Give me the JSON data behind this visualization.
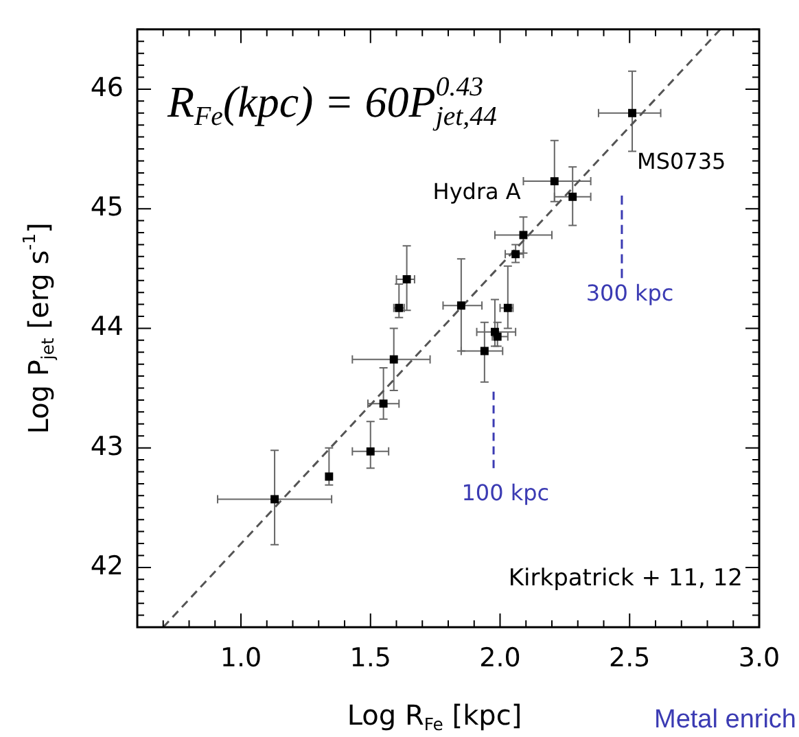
{
  "chart_data": {
    "type": "scatter",
    "xlabel": "Log R$_{Fe}$ [kpc]",
    "ylabel": "Log P$_{jet}$ [erg s$^{-1}$]",
    "xlim": [
      0.6,
      3.0
    ],
    "ylim": [
      41.5,
      46.5
    ],
    "xticks": [
      {
        "value": 0.6,
        "label": null
      },
      {
        "value": 0.7,
        "label": null
      },
      {
        "value": 0.8,
        "label": null
      },
      {
        "value": 0.9,
        "label": null
      },
      {
        "value": 1.0,
        "label": "1.0"
      },
      {
        "value": 1.1,
        "label": null
      },
      {
        "value": 1.2,
        "label": null
      },
      {
        "value": 1.3,
        "label": null
      },
      {
        "value": 1.4,
        "label": null
      },
      {
        "value": 1.5,
        "label": "1.5"
      },
      {
        "value": 1.6,
        "label": null
      },
      {
        "value": 1.7,
        "label": null
      },
      {
        "value": 1.8,
        "label": null
      },
      {
        "value": 1.9,
        "label": null
      },
      {
        "value": 2.0,
        "label": "2.0"
      },
      {
        "value": 2.1,
        "label": null
      },
      {
        "value": 2.2,
        "label": null
      },
      {
        "value": 2.3,
        "label": null
      },
      {
        "value": 2.4,
        "label": null
      },
      {
        "value": 2.5,
        "label": "2.5"
      },
      {
        "value": 2.6,
        "label": null
      },
      {
        "value": 2.7,
        "label": null
      },
      {
        "value": 2.8,
        "label": null
      },
      {
        "value": 2.9,
        "label": null
      },
      {
        "value": 3.0,
        "label": "3.0"
      }
    ],
    "yticks": [
      {
        "value": 41.5,
        "label": null
      },
      {
        "value": 41.6,
        "label": null
      },
      {
        "value": 41.7,
        "label": null
      },
      {
        "value": 41.8,
        "label": null
      },
      {
        "value": 41.9,
        "label": null
      },
      42,
      {
        "value": 42.1,
        "label": null
      },
      {
        "value": 42.2,
        "label": null
      },
      {
        "value": 42.3,
        "label": null
      },
      {
        "value": 42.4,
        "label": null
      },
      {
        "value": 42.5,
        "label": null
      },
      {
        "value": 42.6,
        "label": null
      },
      {
        "value": 42.7,
        "label": null
      },
      {
        "value": 42.8,
        "label": null
      },
      {
        "value": 42.9,
        "label": null
      },
      43,
      {
        "value": 43.1,
        "label": null
      },
      {
        "value": 43.2,
        "label": null
      },
      {
        "value": 43.3,
        "label": null
      },
      {
        "value": 43.4,
        "label": null
      },
      {
        "value": 43.5,
        "label": null
      },
      {
        "value": 43.6,
        "label": null
      },
      {
        "value": 43.7,
        "label": null
      },
      {
        "value": 43.8,
        "label": null
      },
      {
        "value": 43.9,
        "label": null
      },
      44,
      {
        "value": 44.1,
        "label": null
      },
      {
        "value": 44.2,
        "label": null
      },
      {
        "value": 44.3,
        "label": null
      },
      {
        "value": 44.4,
        "label": null
      },
      {
        "value": 44.5,
        "label": null
      },
      {
        "value": 44.6,
        "label": null
      },
      {
        "value": 44.7,
        "label": null
      },
      {
        "value": 44.8,
        "label": null
      },
      {
        "value": 44.9,
        "label": null
      },
      45,
      {
        "value": 45.1,
        "label": null
      },
      {
        "value": 45.2,
        "label": null
      },
      {
        "value": 45.3,
        "label": null
      },
      {
        "value": 45.4,
        "label": null
      },
      {
        "value": 45.5,
        "label": null
      },
      {
        "value": 45.6,
        "label": null
      },
      {
        "value": 45.7,
        "label": null
      },
      {
        "value": 45.8,
        "label": null
      },
      {
        "value": 45.9,
        "label": null
      },
      46,
      {
        "value": 46.1,
        "label": null
      },
      {
        "value": 46.2,
        "label": null
      },
      {
        "value": 46.3,
        "label": null
      },
      {
        "value": 46.4,
        "label": null
      },
      {
        "value": 46.5,
        "label": null
      }
    ],
    "marker": "square",
    "series": [
      {
        "color": "#000000",
        "x": [
          2.51,
          2.21,
          2.28,
          2.09,
          2.06,
          1.64,
          1.61,
          1.85,
          2.03,
          1.98,
          1.99,
          1.94,
          1.59,
          1.55,
          1.5,
          1.34,
          1.13
        ],
        "values": [
          45.8,
          45.23,
          45.1,
          44.78,
          44.62,
          44.41,
          44.17,
          44.19,
          44.17,
          43.97,
          43.93,
          43.81,
          43.74,
          43.37,
          42.97,
          42.76,
          42.57
        ],
        "errors": [
          [
            45.48,
            46.15
          ],
          [
            45.06,
            45.57
          ],
          [
            44.86,
            45.35
          ],
          [
            44.63,
            44.93
          ],
          [
            44.55,
            44.7
          ],
          [
            44.15,
            44.69
          ],
          [
            44.09,
            44.37
          ],
          [
            43.81,
            44.58
          ],
          [
            44.0,
            44.52
          ],
          [
            43.85,
            44.24
          ],
          [
            43.85,
            44.05
          ],
          [
            43.55,
            44.05
          ],
          [
            43.48,
            44.0
          ],
          [
            43.24,
            43.67
          ],
          [
            42.83,
            43.22
          ],
          [
            42.69,
            43.0
          ],
          [
            42.19,
            42.98
          ]
        ],
        "xerrors": [
          [
            2.38,
            2.62
          ],
          [
            2.09,
            2.35
          ],
          [
            2.21,
            2.35
          ],
          [
            1.98,
            2.2
          ],
          [
            2.02,
            2.09
          ],
          [
            1.6,
            1.67
          ],
          [
            1.59,
            1.63
          ],
          [
            1.78,
            1.93
          ],
          [
            2.0,
            2.05
          ],
          [
            1.91,
            2.06
          ],
          [
            1.97,
            2.03
          ],
          [
            1.85,
            2.01
          ],
          [
            1.43,
            1.73
          ],
          [
            1.49,
            1.61
          ],
          [
            1.43,
            1.57
          ],
          null,
          [
            0.91,
            1.35
          ]
        ]
      },
      {
        "type": "line",
        "color": "#555555",
        "marker": "none",
        "line_style": "dashed",
        "x": [
          0.7,
          2.85
        ],
        "values": [
          41.5,
          46.5
        ]
      },
      {
        "type": "line",
        "color": "#3b3bb3",
        "marker": "none",
        "line_style": "dashed",
        "x": [
          2.47,
          2.47
        ],
        "values": [
          44.42,
          45.11
        ]
      },
      {
        "type": "line",
        "color": "#3b3bb3",
        "marker": "none",
        "line_style": "dashed",
        "x": [
          1.975,
          1.975
        ],
        "values": [
          42.83,
          43.47
        ]
      }
    ],
    "annotations": [
      "R$_{Fe}$(kpc) = 60P$^{0.43}$$_{jet,44}$",
      "MS0735",
      "Hydra A",
      "300 kpc",
      "100 kpc",
      "Kirkpatrick + 11, 12",
      "Metal enrich"
    ]
  }
}
